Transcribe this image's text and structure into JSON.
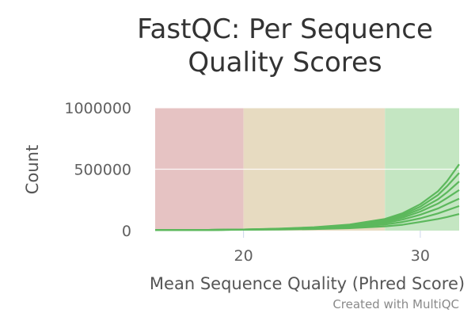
{
  "chart_data": {
    "type": "line",
    "title_lines": [
      "FastQC: Per Sequence",
      "Quality Scores"
    ],
    "xlabel": "Mean Sequence Quality (Phred Score)",
    "ylabel": "Count",
    "xlim": [
      15,
      32.2
    ],
    "ylim": [
      0,
      1000000
    ],
    "x_ticks": [
      {
        "value": 20,
        "label": "20"
      },
      {
        "value": 30,
        "label": "30"
      }
    ],
    "y_ticks": [
      {
        "value": 0,
        "label": "0"
      },
      {
        "value": 500000,
        "label": "500000"
      },
      {
        "value": 1000000,
        "label": "1000000"
      }
    ],
    "bands": [
      {
        "from": 15,
        "to": 20,
        "color": "#e6c3c3"
      },
      {
        "from": 20,
        "to": 28,
        "color": "#e7dbc1"
      },
      {
        "from": 28,
        "to": 32.2,
        "color": "#c4e6c2"
      }
    ],
    "line_color": "#5cb85c",
    "grid": true,
    "x": [
      15,
      18,
      20,
      22,
      24,
      26,
      28,
      29,
      30,
      31,
      31.5,
      32.2
    ],
    "series": [
      {
        "values": [
          5000,
          6000,
          7000,
          9000,
          13000,
          20000,
          35000,
          48000,
          70000,
          95000,
          110000,
          135000
        ]
      },
      {
        "values": [
          5000,
          6000,
          8000,
          11000,
          17000,
          28000,
          50000,
          70000,
          100000,
          140000,
          165000,
          200000
        ]
      },
      {
        "values": [
          5000,
          6000,
          8000,
          12000,
          20000,
          34000,
          62000,
          90000,
          130000,
          180000,
          215000,
          260000
        ]
      },
      {
        "values": [
          5000,
          6000,
          8000,
          13000,
          22000,
          38000,
          72000,
          105000,
          155000,
          220000,
          265000,
          330000
        ]
      },
      {
        "values": [
          5000,
          6000,
          9000,
          14000,
          24000,
          42000,
          80000,
          118000,
          175000,
          255000,
          310000,
          400000
        ]
      },
      {
        "values": [
          5000,
          6000,
          9000,
          15000,
          26000,
          46000,
          88000,
          130000,
          195000,
          290000,
          360000,
          470000
        ]
      },
      {
        "values": [
          5000,
          6000,
          9000,
          16000,
          28000,
          50000,
          95000,
          142000,
          215000,
          320000,
          400000,
          540000
        ]
      }
    ]
  },
  "credits": "Created with MultiQC"
}
